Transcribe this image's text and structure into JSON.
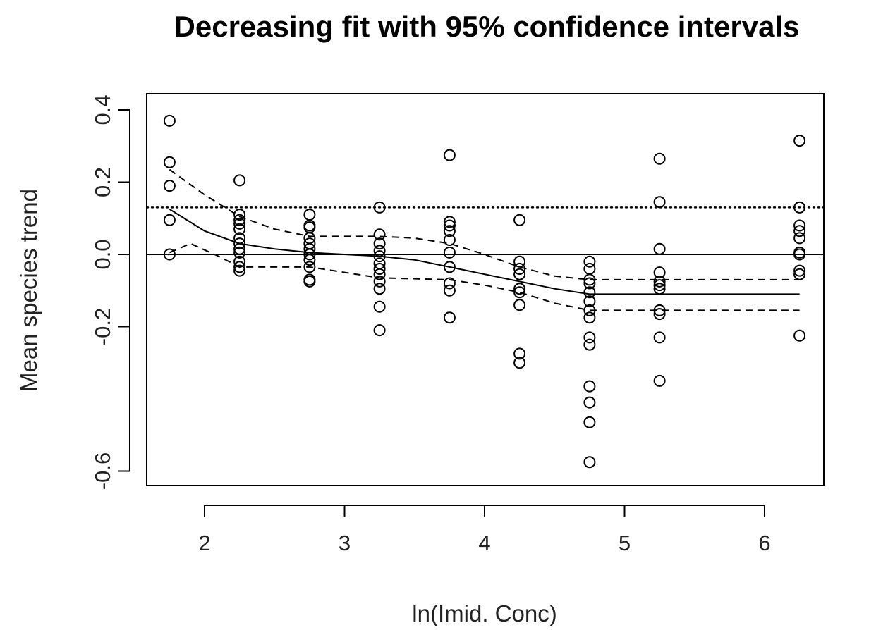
{
  "chart_data": {
    "type": "scatter",
    "title": "Decreasing fit with 95% confidence intervals",
    "xlabel": "ln(Imid. Conc)",
    "ylabel": "Mean species trend",
    "xlim": [
      1.6,
      6.4
    ],
    "ylim": [
      -0.64,
      0.45
    ],
    "x_ticks": [
      2,
      3,
      4,
      5,
      6
    ],
    "x_tick_labels": [
      "2",
      "3",
      "4",
      "5",
      "6"
    ],
    "y_ticks": [
      -0.6,
      -0.2,
      0.0,
      0.2,
      0.4
    ],
    "y_tick_labels": [
      "-0.6",
      "-0.2",
      "0.0",
      "0.2",
      "0.4"
    ],
    "grid": false,
    "points": [
      {
        "x": 1.75,
        "y": 0.37
      },
      {
        "x": 1.75,
        "y": 0.255
      },
      {
        "x": 1.75,
        "y": 0.19
      },
      {
        "x": 1.75,
        "y": 0.095
      },
      {
        "x": 1.75,
        "y": 0.0
      },
      {
        "x": 2.25,
        "y": 0.205
      },
      {
        "x": 2.25,
        "y": 0.11
      },
      {
        "x": 2.25,
        "y": 0.095
      },
      {
        "x": 2.25,
        "y": 0.085
      },
      {
        "x": 2.25,
        "y": 0.07
      },
      {
        "x": 2.25,
        "y": 0.045
      },
      {
        "x": 2.25,
        "y": 0.03
      },
      {
        "x": 2.25,
        "y": 0.015
      },
      {
        "x": 2.25,
        "y": 0.005
      },
      {
        "x": 2.25,
        "y": -0.02
      },
      {
        "x": 2.25,
        "y": -0.035
      },
      {
        "x": 2.25,
        "y": -0.045
      },
      {
        "x": 2.75,
        "y": 0.11
      },
      {
        "x": 2.75,
        "y": 0.08
      },
      {
        "x": 2.75,
        "y": 0.075
      },
      {
        "x": 2.75,
        "y": 0.045
      },
      {
        "x": 2.75,
        "y": 0.03
      },
      {
        "x": 2.75,
        "y": 0.015
      },
      {
        "x": 2.75,
        "y": 0.0
      },
      {
        "x": 2.75,
        "y": -0.015
      },
      {
        "x": 2.75,
        "y": -0.035
      },
      {
        "x": 2.75,
        "y": -0.07
      },
      {
        "x": 2.75,
        "y": -0.075
      },
      {
        "x": 3.25,
        "y": 0.13
      },
      {
        "x": 3.25,
        "y": 0.055
      },
      {
        "x": 3.25,
        "y": 0.03
      },
      {
        "x": 3.25,
        "y": 0.01
      },
      {
        "x": 3.25,
        "y": -0.005
      },
      {
        "x": 3.25,
        "y": -0.025
      },
      {
        "x": 3.25,
        "y": -0.04
      },
      {
        "x": 3.25,
        "y": -0.055
      },
      {
        "x": 3.25,
        "y": -0.075
      },
      {
        "x": 3.25,
        "y": -0.095
      },
      {
        "x": 3.25,
        "y": -0.145
      },
      {
        "x": 3.25,
        "y": -0.21
      },
      {
        "x": 3.75,
        "y": 0.275
      },
      {
        "x": 3.75,
        "y": 0.09
      },
      {
        "x": 3.75,
        "y": 0.08
      },
      {
        "x": 3.75,
        "y": 0.065
      },
      {
        "x": 3.75,
        "y": 0.04
      },
      {
        "x": 3.75,
        "y": 0.005
      },
      {
        "x": 3.75,
        "y": -0.035
      },
      {
        "x": 3.75,
        "y": -0.08
      },
      {
        "x": 3.75,
        "y": -0.1
      },
      {
        "x": 3.75,
        "y": -0.175
      },
      {
        "x": 4.25,
        "y": 0.095
      },
      {
        "x": 4.25,
        "y": -0.02
      },
      {
        "x": 4.25,
        "y": -0.04
      },
      {
        "x": 4.25,
        "y": -0.055
      },
      {
        "x": 4.25,
        "y": -0.095
      },
      {
        "x": 4.25,
        "y": -0.105
      },
      {
        "x": 4.25,
        "y": -0.14
      },
      {
        "x": 4.25,
        "y": -0.275
      },
      {
        "x": 4.25,
        "y": -0.3
      },
      {
        "x": 4.75,
        "y": -0.02
      },
      {
        "x": 4.75,
        "y": -0.04
      },
      {
        "x": 4.75,
        "y": -0.07
      },
      {
        "x": 4.75,
        "y": -0.08
      },
      {
        "x": 4.75,
        "y": -0.105
      },
      {
        "x": 4.75,
        "y": -0.13
      },
      {
        "x": 4.75,
        "y": -0.155
      },
      {
        "x": 4.75,
        "y": -0.175
      },
      {
        "x": 4.75,
        "y": -0.23
      },
      {
        "x": 4.75,
        "y": -0.25
      },
      {
        "x": 4.75,
        "y": -0.365
      },
      {
        "x": 4.75,
        "y": -0.41
      },
      {
        "x": 4.75,
        "y": -0.465
      },
      {
        "x": 4.75,
        "y": -0.575
      },
      {
        "x": 5.25,
        "y": 0.265
      },
      {
        "x": 5.25,
        "y": 0.145
      },
      {
        "x": 5.25,
        "y": 0.015
      },
      {
        "x": 5.25,
        "y": -0.05
      },
      {
        "x": 5.25,
        "y": -0.075
      },
      {
        "x": 5.25,
        "y": -0.085
      },
      {
        "x": 5.25,
        "y": -0.095
      },
      {
        "x": 5.25,
        "y": -0.155
      },
      {
        "x": 5.25,
        "y": -0.165
      },
      {
        "x": 5.25,
        "y": -0.23
      },
      {
        "x": 5.25,
        "y": -0.35
      },
      {
        "x": 6.25,
        "y": 0.315
      },
      {
        "x": 6.25,
        "y": 0.13
      },
      {
        "x": 6.25,
        "y": 0.08
      },
      {
        "x": 6.25,
        "y": 0.065
      },
      {
        "x": 6.25,
        "y": 0.045
      },
      {
        "x": 6.25,
        "y": 0.005
      },
      {
        "x": 6.25,
        "y": 0.0
      },
      {
        "x": 6.25,
        "y": -0.045
      },
      {
        "x": 6.25,
        "y": -0.055
      },
      {
        "x": 6.25,
        "y": -0.225
      }
    ],
    "reference_lines": [
      {
        "y": 0.0,
        "style": "solid"
      },
      {
        "y": 0.13,
        "style": "dotted"
      }
    ],
    "fit": {
      "style": "solid",
      "points": [
        {
          "x": 1.75,
          "y": 0.125
        },
        {
          "x": 2.0,
          "y": 0.065
        },
        {
          "x": 2.25,
          "y": 0.03
        },
        {
          "x": 2.5,
          "y": 0.015
        },
        {
          "x": 2.75,
          "y": 0.005
        },
        {
          "x": 3.25,
          "y": -0.005
        },
        {
          "x": 3.5,
          "y": -0.015
        },
        {
          "x": 3.75,
          "y": -0.035
        },
        {
          "x": 4.0,
          "y": -0.055
        },
        {
          "x": 4.25,
          "y": -0.075
        },
        {
          "x": 4.5,
          "y": -0.095
        },
        {
          "x": 4.75,
          "y": -0.11
        },
        {
          "x": 5.25,
          "y": -0.11
        },
        {
          "x": 6.25,
          "y": -0.11
        }
      ]
    },
    "ci_upper": {
      "style": "dashed",
      "points": [
        {
          "x": 1.75,
          "y": 0.235
        },
        {
          "x": 2.0,
          "y": 0.165
        },
        {
          "x": 2.25,
          "y": 0.105
        },
        {
          "x": 2.5,
          "y": 0.07
        },
        {
          "x": 2.75,
          "y": 0.05
        },
        {
          "x": 3.25,
          "y": 0.05
        },
        {
          "x": 3.5,
          "y": 0.045
        },
        {
          "x": 3.75,
          "y": 0.03
        },
        {
          "x": 4.0,
          "y": 0.0
        },
        {
          "x": 4.25,
          "y": -0.035
        },
        {
          "x": 4.5,
          "y": -0.06
        },
        {
          "x": 4.75,
          "y": -0.07
        },
        {
          "x": 5.25,
          "y": -0.07
        },
        {
          "x": 6.25,
          "y": -0.07
        }
      ]
    },
    "ci_lower": {
      "style": "dashed",
      "points": [
        {
          "x": 1.75,
          "y": 0.005
        },
        {
          "x": 1.9,
          "y": 0.03
        },
        {
          "x": 2.1,
          "y": -0.005
        },
        {
          "x": 2.25,
          "y": -0.035
        },
        {
          "x": 2.75,
          "y": -0.035
        },
        {
          "x": 3.25,
          "y": -0.065
        },
        {
          "x": 3.75,
          "y": -0.07
        },
        {
          "x": 4.0,
          "y": -0.085
        },
        {
          "x": 4.25,
          "y": -0.105
        },
        {
          "x": 4.5,
          "y": -0.135
        },
        {
          "x": 4.75,
          "y": -0.155
        },
        {
          "x": 5.25,
          "y": -0.155
        },
        {
          "x": 6.25,
          "y": -0.155
        }
      ]
    }
  }
}
